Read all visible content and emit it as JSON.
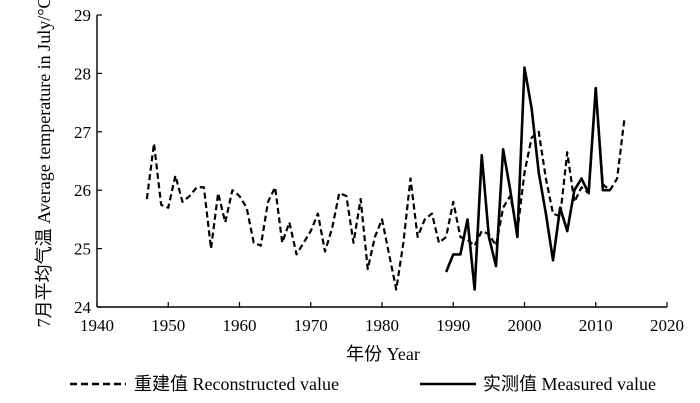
{
  "chart_data": {
    "type": "line",
    "title": "",
    "xlabel": "年份 Year",
    "ylabel": "7月平均气温 Average temperature in July/°C",
    "xlim": [
      1940,
      2020
    ],
    "ylim": [
      24,
      29
    ],
    "xticks": [
      1940,
      1950,
      1960,
      1970,
      1980,
      1990,
      2000,
      2010,
      2020
    ],
    "yticks": [
      24,
      25,
      26,
      27,
      28,
      29
    ],
    "legend_position": "bottom",
    "series": [
      {
        "name": "重建值 Reconstructed value",
        "style": "dashed",
        "x": [
          1947,
          1948,
          1949,
          1950,
          1951,
          1952,
          1953,
          1954,
          1955,
          1956,
          1957,
          1958,
          1959,
          1960,
          1961,
          1962,
          1963,
          1964,
          1965,
          1966,
          1967,
          1968,
          1969,
          1970,
          1971,
          1972,
          1973,
          1974,
          1975,
          1976,
          1977,
          1978,
          1979,
          1980,
          1981,
          1982,
          1983,
          1984,
          1985,
          1986,
          1987,
          1988,
          1989,
          1990,
          1991,
          1992,
          1993,
          1994,
          1995,
          1996,
          1997,
          1998,
          1999,
          2000,
          2001,
          2002,
          2003,
          2004,
          2005,
          2006,
          2007,
          2008,
          2009,
          2010,
          2011,
          2012,
          2013,
          2014
        ],
        "y": [
          25.85,
          26.8,
          25.75,
          25.7,
          26.25,
          25.8,
          25.9,
          26.05,
          26.05,
          25.0,
          25.95,
          25.45,
          26.0,
          25.9,
          25.7,
          25.1,
          25.05,
          25.8,
          26.05,
          25.1,
          25.45,
          24.9,
          25.1,
          25.3,
          25.6,
          24.95,
          25.35,
          25.95,
          25.9,
          25.1,
          25.85,
          24.65,
          25.2,
          25.5,
          24.9,
          24.3,
          25.1,
          26.2,
          25.2,
          25.5,
          25.6,
          25.1,
          25.2,
          25.8,
          25.2,
          25.15,
          25.05,
          25.3,
          25.25,
          25.05,
          25.7,
          25.9,
          25.3,
          26.3,
          26.9,
          27.0,
          26.2,
          25.6,
          25.55,
          26.65,
          25.8,
          26.05,
          25.95,
          27.7,
          26.1,
          26.0,
          26.2,
          27.2
        ]
      },
      {
        "name": "实测值 Measured value",
        "style": "solid",
        "x": [
          1989,
          1990,
          1991,
          1992,
          1993,
          1994,
          1995,
          1996,
          1997,
          1998,
          1999,
          2000,
          2001,
          2002,
          2003,
          2004,
          2005,
          2006,
          2007,
          2008,
          2009,
          2010,
          2011,
          2012
        ],
        "y": [
          24.6,
          24.9,
          24.9,
          25.5,
          24.3,
          26.6,
          25.2,
          24.7,
          26.7,
          26.0,
          25.2,
          28.1,
          27.4,
          26.3,
          25.6,
          24.8,
          25.7,
          25.3,
          26.0,
          26.2,
          25.95,
          27.75,
          26.0,
          26.0
        ]
      }
    ]
  }
}
